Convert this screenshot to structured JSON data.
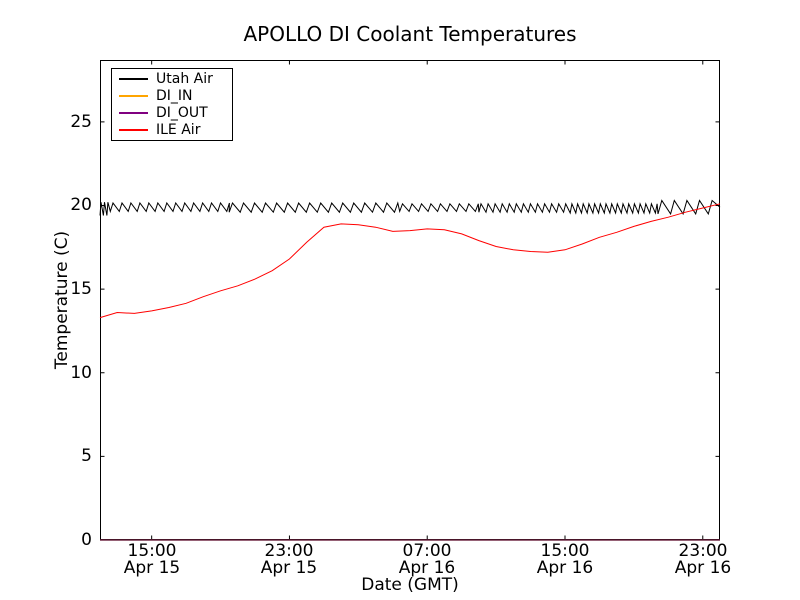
{
  "figure": {
    "title": "APOLLO DI Coolant Temperatures",
    "xlabel": "Date (GMT)",
    "ylabel": "Temperature (C)"
  },
  "legend": {
    "position": "upper left",
    "items": [
      {
        "label": "Utah Air",
        "color": "#000000"
      },
      {
        "label": "DI_IN",
        "color": "#ffa500"
      },
      {
        "label": "DI_OUT",
        "color": "#800080"
      },
      {
        "label": "ILE Air",
        "color": "#ff0000"
      }
    ]
  },
  "axes": {
    "yticks": [
      "0",
      "5",
      "10",
      "15",
      "20",
      "25"
    ],
    "xticks": [
      {
        "time": "15:00",
        "date": "Apr 15"
      },
      {
        "time": "23:00",
        "date": "Apr 15"
      },
      {
        "time": "07:00",
        "date": "Apr 16"
      },
      {
        "time": "15:00",
        "date": "Apr 16"
      },
      {
        "time": "23:00",
        "date": "Apr 16"
      }
    ]
  },
  "chart_data": {
    "type": "line",
    "title": "APOLLO DI Coolant Temperatures",
    "xlabel": "Date (GMT)",
    "ylabel": "Temperature (C)",
    "grid": false,
    "legend_position": "upper left",
    "ylim": [
      0,
      28.7
    ],
    "ytick_values": [
      0,
      5,
      10,
      15,
      20,
      25
    ],
    "x_axis_hours_total": 36,
    "x_start_label": "Apr 15 12:00",
    "x_end_label": "Apr 16 24:00",
    "xtick_hours": [
      3,
      11,
      19,
      27,
      35
    ],
    "series": [
      {
        "name": "Utah Air",
        "color": "#000000",
        "pattern": "sawtooth",
        "baseline": 19.9,
        "sawtooth_segments": [
          {
            "from": 0,
            "to": 0.6,
            "period": 0.2,
            "lo": 19.4,
            "hi": 20.2
          },
          {
            "from": 0.6,
            "to": 7.5,
            "period": 0.52,
            "lo": 19.65,
            "hi": 20.15
          },
          {
            "from": 7.5,
            "to": 17.4,
            "period": 0.64,
            "lo": 19.6,
            "hi": 20.15
          },
          {
            "from": 17.4,
            "to": 22.0,
            "period": 0.55,
            "lo": 19.65,
            "hi": 20.1
          },
          {
            "from": 22.0,
            "to": 27.3,
            "period": 0.41,
            "lo": 19.6,
            "hi": 20.1
          },
          {
            "from": 27.3,
            "to": 32.4,
            "period": 0.33,
            "lo": 19.55,
            "hi": 20.1
          },
          {
            "from": 32.4,
            "to": 36.0,
            "period": 0.73,
            "lo": 19.5,
            "hi": 20.3
          }
        ]
      },
      {
        "name": "DI_IN",
        "color": "#ffa500",
        "x_hours": [
          0,
          36
        ],
        "values": [
          0,
          0
        ]
      },
      {
        "name": "DI_OUT",
        "color": "#800080",
        "x_hours": [
          0,
          36
        ],
        "values": [
          0,
          0
        ]
      },
      {
        "name": "ILE Air",
        "color": "#ff0000",
        "x_step_hours": 1,
        "values": [
          13.3,
          13.6,
          13.55,
          13.7,
          13.9,
          14.15,
          14.55,
          14.9,
          15.2,
          15.6,
          16.1,
          16.8,
          17.8,
          18.7,
          18.9,
          18.85,
          18.7,
          18.45,
          18.5,
          18.6,
          18.55,
          18.3,
          17.9,
          17.55,
          17.35,
          17.25,
          17.2,
          17.35,
          17.7,
          18.1,
          18.4,
          18.75,
          19.05,
          19.3,
          19.6,
          19.85,
          20.1
        ]
      }
    ]
  }
}
